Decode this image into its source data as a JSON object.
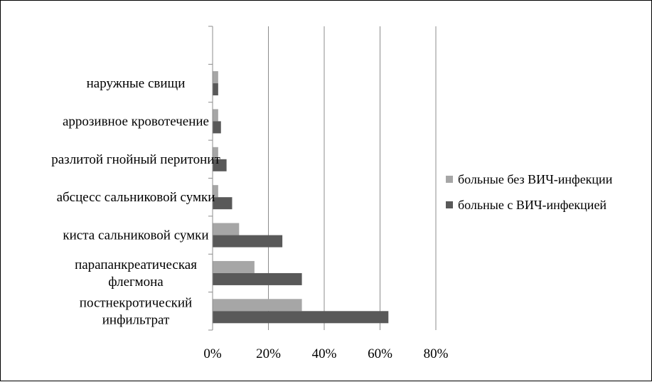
{
  "chart_data": {
    "type": "bar",
    "orientation": "horizontal",
    "title": "",
    "xlabel": "",
    "ylabel": "",
    "xlim": [
      0,
      80
    ],
    "x_ticks": [
      "0%",
      "20%",
      "40%",
      "60%",
      "80%"
    ],
    "x_tick_values": [
      0,
      20,
      40,
      60,
      80
    ],
    "unit": "%",
    "grid": true,
    "legend_position": "right",
    "categories": [
      [
        "постнекротический",
        "инфильтрат"
      ],
      [
        "парапанкреатическая",
        "флегмона"
      ],
      [
        "киста сальниковой сумки"
      ],
      [
        "абсцесс сальниковой сумки"
      ],
      [
        "разлитой гнойный перитонит"
      ],
      [
        "аррозивное кровотечение"
      ],
      [
        "наружные свищи"
      ],
      [
        ""
      ]
    ],
    "series": [
      {
        "name": "больные без ВИЧ-инфекции",
        "color": "#A6A6A6",
        "values": [
          32,
          15,
          9.5,
          2,
          2,
          2,
          2,
          0
        ]
      },
      {
        "name": "больные с ВИЧ-инфекцией",
        "color": "#595959",
        "values": [
          63,
          32,
          25,
          7,
          5,
          3,
          2,
          0
        ]
      }
    ]
  }
}
